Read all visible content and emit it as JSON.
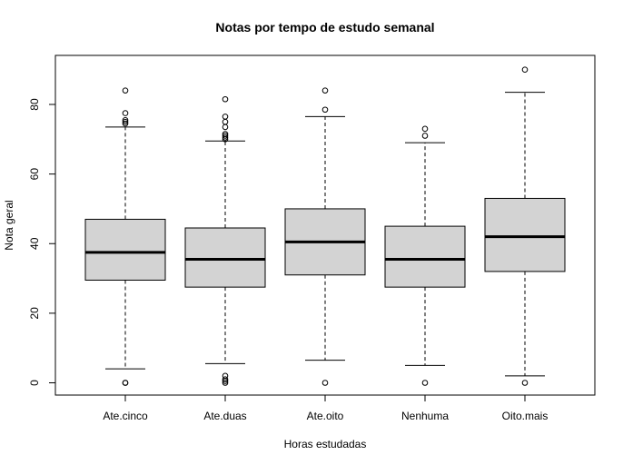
{
  "chart_data": {
    "type": "boxplot",
    "title": "Notas por tempo de estudo semanal",
    "xlabel": "Horas estudadas",
    "ylabel": "Nota geral",
    "ylim": [
      -4,
      94
    ],
    "y_ticks": [
      0,
      20,
      40,
      60,
      80
    ],
    "grid": false,
    "box_fill": "#d3d3d3",
    "line_color": "#000000",
    "categories": [
      "Ate.cinco",
      "Ate.duas",
      "Ate.oito",
      "Nenhuma",
      "Oito.mais"
    ],
    "boxes": [
      {
        "category": "Ate.cinco",
        "whisker_low": 4,
        "q1": 29.5,
        "median": 37.5,
        "q3": 47,
        "whisker_high": 73.5,
        "outliers": [
          0,
          0,
          74.5,
          75,
          75.5,
          77.5,
          84
        ]
      },
      {
        "category": "Ate.duas",
        "whisker_low": 5.5,
        "q1": 27.5,
        "median": 35.5,
        "q3": 44.5,
        "whisker_high": 69.5,
        "outliers": [
          0,
          0.5,
          1,
          2,
          70,
          70.5,
          71,
          71.5,
          73.5,
          75,
          76.5,
          81.5
        ]
      },
      {
        "category": "Ate.oito",
        "whisker_low": 6.5,
        "q1": 31,
        "median": 40.5,
        "q3": 50,
        "whisker_high": 76.5,
        "outliers": [
          0,
          78.5,
          84
        ]
      },
      {
        "category": "Nenhuma",
        "whisker_low": 5,
        "q1": 27.5,
        "median": 35.5,
        "q3": 45,
        "whisker_high": 69,
        "outliers": [
          0,
          71,
          73
        ]
      },
      {
        "category": "Oito.mais",
        "whisker_low": 2,
        "q1": 32,
        "median": 42,
        "q3": 53,
        "whisker_high": 83.5,
        "outliers": [
          0,
          90
        ]
      }
    ]
  }
}
